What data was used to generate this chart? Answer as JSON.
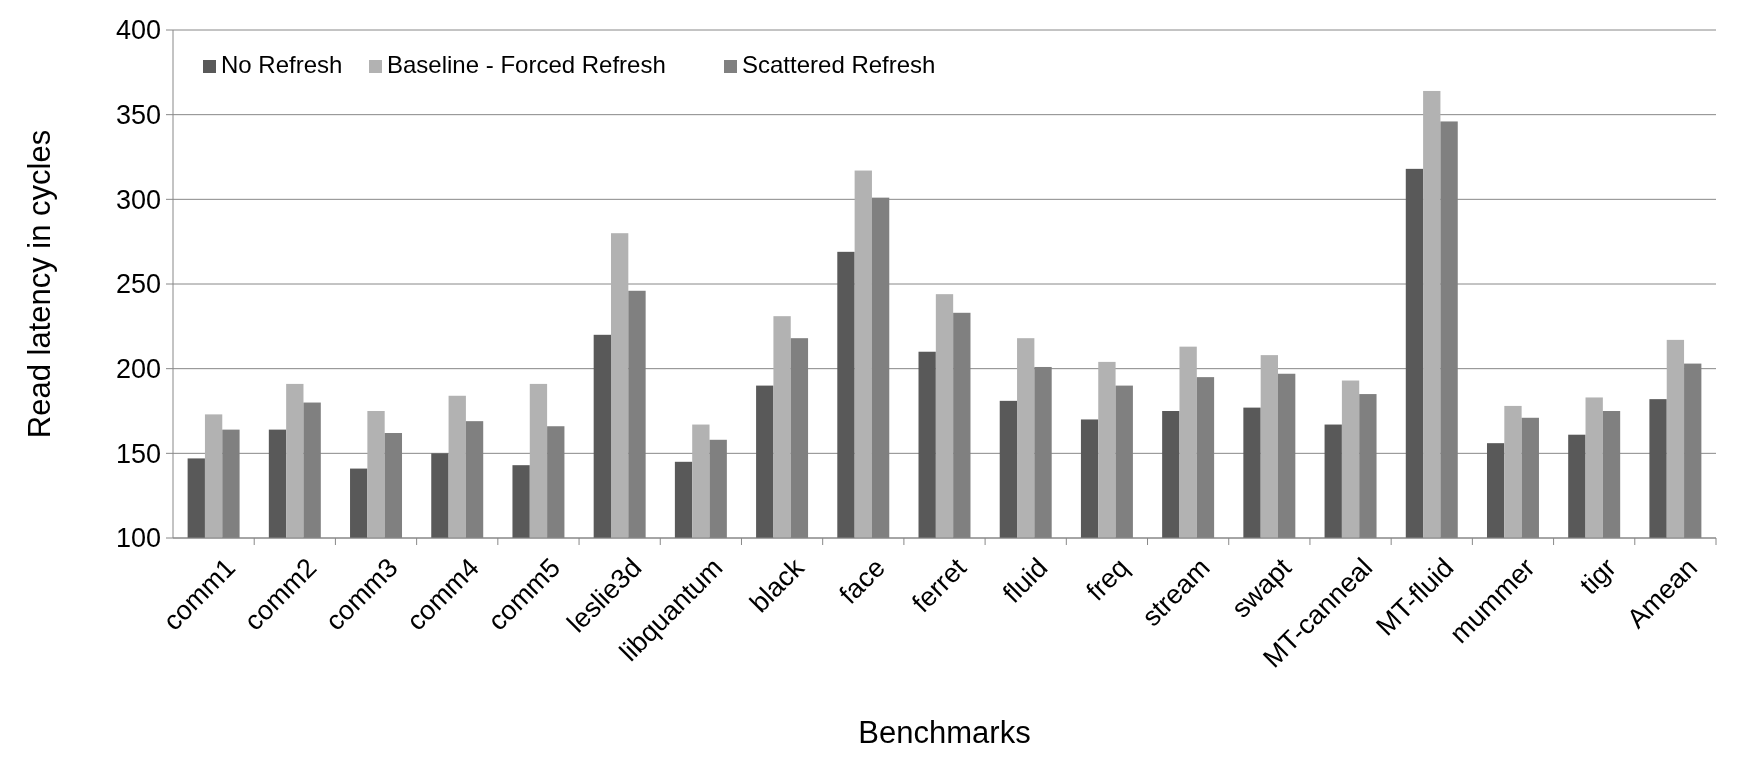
{
  "chart_data": {
    "type": "bar",
    "xlabel": "Benchmarks",
    "ylabel": "Read latency in cycles",
    "categories": [
      "comm1",
      "comm2",
      "comm3",
      "comm4",
      "comm5",
      "leslie3d",
      "libquantum",
      "black",
      "face",
      "ferret",
      "fluid",
      "freq",
      "stream",
      "swapt",
      "MT-canneal",
      "MT-fluid",
      "mummer",
      "tigr",
      "Amean"
    ],
    "series": [
      {
        "name": "No Refresh",
        "color": "#595959",
        "values": [
          147,
          164,
          141,
          150,
          143,
          220,
          145,
          190,
          269,
          210,
          181,
          170,
          175,
          177,
          167,
          318,
          156,
          161,
          182
        ]
      },
      {
        "name": "Baseline - Forced Refresh",
        "color": "#b2b2b2",
        "values": [
          173,
          191,
          175,
          184,
          191,
          280,
          167,
          231,
          317,
          244,
          218,
          204,
          213,
          208,
          193,
          364,
          178,
          183,
          217
        ]
      },
      {
        "name": "Scattered Refresh",
        "color": "#808080",
        "values": [
          164,
          180,
          162,
          169,
          166,
          246,
          158,
          218,
          301,
          233,
          201,
          190,
          195,
          197,
          185,
          346,
          171,
          175,
          203
        ]
      }
    ],
    "ylim": [
      100,
      400
    ],
    "yticks": [
      100,
      150,
      200,
      250,
      300,
      350,
      400
    ],
    "grid": "y",
    "legend": "top left"
  }
}
